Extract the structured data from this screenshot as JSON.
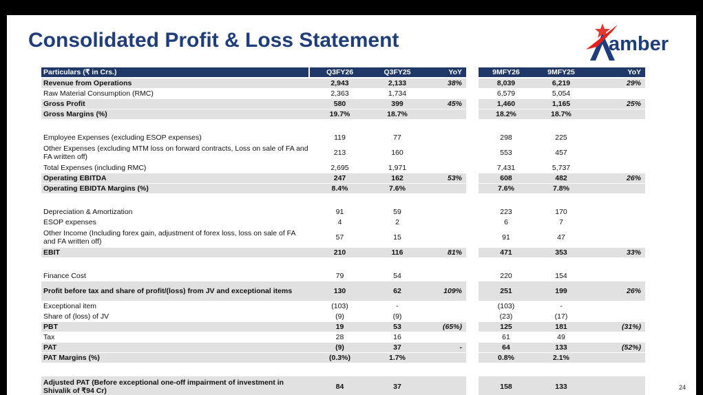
{
  "title": "Consolidated Profit & Loss Statement",
  "logo": {
    "text": "amber",
    "accent_color": "#e1231b",
    "brand_color": "#1f3d7a"
  },
  "page_number": "24",
  "table": {
    "columns": [
      "Particulars (₹ in Crs.)",
      "Q3FY26",
      "Q3FY25",
      "YoY",
      "9MFY26",
      "9MFY25",
      "YoY"
    ],
    "rows": [
      {
        "label": "Revenue from Operations",
        "v": [
          "2,943",
          "2,133",
          "38%",
          "8,039",
          "6,219",
          "29%"
        ],
        "bold": true,
        "shaded": true
      },
      {
        "label": "Raw Material Consumption (RMC)",
        "v": [
          "2,363",
          "1,734",
          "",
          "6,579",
          "5,054",
          ""
        ],
        "bold": false,
        "shaded": false
      },
      {
        "label": "Gross Profit",
        "v": [
          "580",
          "399",
          "45%",
          "1,460",
          "1,165",
          "25%"
        ],
        "bold": true,
        "shaded": true
      },
      {
        "label": "Gross Margins (%)",
        "v": [
          "19.7%",
          "18.7%",
          "",
          "18.2%",
          "18.7%",
          ""
        ],
        "bold": true,
        "shaded": true
      },
      {
        "label": "",
        "v": [
          "",
          "",
          "",
          "",
          "",
          ""
        ],
        "bold": false,
        "shaded": false
      },
      {
        "label": "Employee Expenses (excluding ESOP expenses)",
        "v": [
          "119",
          "77",
          "",
          "298",
          "225",
          ""
        ],
        "bold": false,
        "shaded": false
      },
      {
        "label": "Other Expenses (excluding MTM loss on forward contracts, Loss on sale of FA and FA written off)",
        "v": [
          "213",
          "160",
          "",
          "553",
          "457",
          ""
        ],
        "bold": false,
        "shaded": false
      },
      {
        "label": "Total Expenses (including RMC)",
        "v": [
          "2,695",
          "1,971",
          "",
          "7,431",
          "5,737",
          ""
        ],
        "bold": false,
        "shaded": false
      },
      {
        "label": "Operating EBITDA",
        "v": [
          "247",
          "162",
          "53%",
          "608",
          "482",
          "26%"
        ],
        "bold": true,
        "shaded": true
      },
      {
        "label": "Operating EBIDTA Margins (%)",
        "v": [
          "8.4%",
          "7.6%",
          "",
          "7.6%",
          "7.8%",
          ""
        ],
        "bold": true,
        "shaded": true
      },
      {
        "label": "",
        "v": [
          "",
          "",
          "",
          "",
          "",
          ""
        ],
        "bold": false,
        "shaded": false
      },
      {
        "label": "Depreciation & Amortization",
        "v": [
          "91",
          "59",
          "",
          "223",
          "170",
          ""
        ],
        "bold": false,
        "shaded": false
      },
      {
        "label": "ESOP expenses",
        "v": [
          "4",
          "2",
          "",
          "6",
          "7",
          ""
        ],
        "bold": false,
        "shaded": false
      },
      {
        "label": "Other Income (Including forex gain, adjustment of forex loss, loss on sale of FA and FA written off)",
        "v": [
          "57",
          "15",
          "",
          "91",
          "47",
          ""
        ],
        "bold": false,
        "shaded": false
      },
      {
        "label": "EBIT",
        "v": [
          "210",
          "116",
          "81%",
          "471",
          "353",
          "33%"
        ],
        "bold": true,
        "shaded": true
      },
      {
        "label": "",
        "v": [
          "",
          "",
          "",
          "",
          "",
          ""
        ],
        "bold": false,
        "shaded": false
      },
      {
        "label": "Finance Cost",
        "v": [
          "79",
          "54",
          "",
          "220",
          "154",
          ""
        ],
        "bold": false,
        "shaded": false
      },
      {
        "label": "Profit before tax and share of profit/(loss) from JV and exceptional items",
        "v": [
          "130",
          "62",
          "109%",
          "251",
          "199",
          "26%"
        ],
        "bold": true,
        "shaded": true
      },
      {
        "label": "Exceptional item",
        "v": [
          "(103)",
          "-",
          "",
          "(103)",
          "-",
          ""
        ],
        "bold": false,
        "shaded": false
      },
      {
        "label": "Share of (loss) of JV",
        "v": [
          "(9)",
          "(9)",
          "",
          "(23)",
          "(17)",
          ""
        ],
        "bold": false,
        "shaded": false
      },
      {
        "label": "PBT",
        "v": [
          "19",
          "53",
          "(65%)",
          "125",
          "181",
          "(31%)"
        ],
        "bold": true,
        "shaded": true
      },
      {
        "label": "Tax",
        "v": [
          "28",
          "16",
          "",
          "61",
          "49",
          ""
        ],
        "bold": false,
        "shaded": false
      },
      {
        "label": "PAT",
        "v": [
          "(9)",
          "37",
          "-",
          "64",
          "133",
          "(52%)"
        ],
        "bold": true,
        "shaded": true
      },
      {
        "label": "PAT Margins (%)",
        "v": [
          "(0.3%)",
          "1.7%",
          "",
          "0.8%",
          "2.1%",
          ""
        ],
        "bold": true,
        "shaded": true
      },
      {
        "label": "",
        "v": [
          "",
          "",
          "",
          "",
          "",
          ""
        ],
        "bold": false,
        "shaded": false
      },
      {
        "label": "Adjusted PAT (Before exceptional one-off impairment of investment in Shivalik of ₹94 Cr)",
        "v": [
          "84",
          "37",
          "",
          "158",
          "133",
          ""
        ],
        "bold": true,
        "shaded": true
      }
    ]
  }
}
